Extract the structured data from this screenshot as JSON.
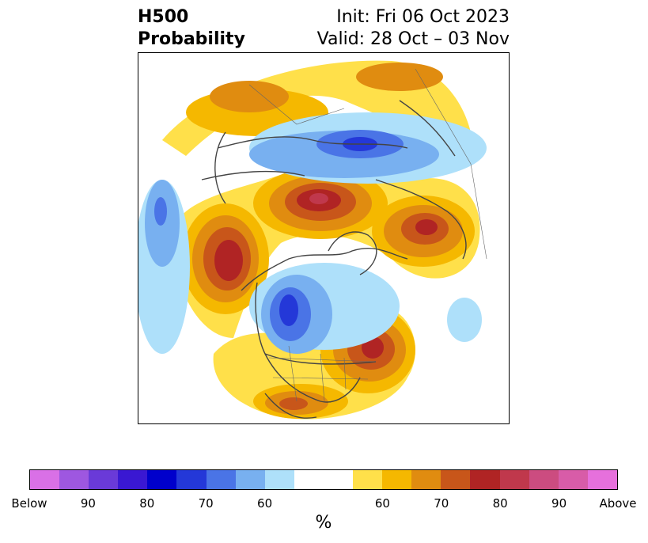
{
  "header": {
    "title_line1": "H500",
    "title_line2": "Probability",
    "init_text": "Init: Fri 06 Oct 2023",
    "valid_text": "Valid: 28 Oct – 03 Nov"
  },
  "map": {
    "projection": "north-polar-stereographic",
    "anomalies": [
      {
        "region": "western-pacific-midlatitudes",
        "sign": "below",
        "level": 70
      },
      {
        "region": "north-pacific-west-of-alaska",
        "sign": "above",
        "level": 80
      },
      {
        "region": "bering-strait-east-siberia",
        "sign": "above",
        "level": 85
      },
      {
        "region": "central-canada-hudson-bay",
        "sign": "below",
        "level": 80
      },
      {
        "region": "eastern-us-atlantic-coast",
        "sign": "above",
        "level": 80
      },
      {
        "region": "northern-mexico",
        "sign": "above",
        "level": 75
      },
      {
        "region": "north-atlantic-greenland-east",
        "sign": "below",
        "level": 60
      },
      {
        "region": "scandinavia-barents",
        "sign": "above",
        "level": 80
      },
      {
        "region": "arctic-ocean-siberia",
        "sign": "below",
        "level": 80
      },
      {
        "region": "central-asia",
        "sign": "above",
        "level": 70
      }
    ]
  },
  "colorbar": {
    "label": "%",
    "ticks": [
      "Below",
      "90",
      "80",
      "70",
      "60",
      "60",
      "70",
      "80",
      "90",
      "Above"
    ],
    "below_colors": [
      "#d970e6",
      "#9e57e0",
      "#6a3ad8",
      "#3a18d2",
      "#0000cc",
      "#2438d8",
      "#4a74e6",
      "#78b0f0",
      "#aee0fa"
    ],
    "neutral_color": "#ffffff",
    "above_colors": [
      "#ffe04a",
      "#f5b800",
      "#e08c10",
      "#c8561a",
      "#b02424",
      "#c0384c",
      "#cc4c80",
      "#d85ca8",
      "#e670dc"
    ]
  }
}
